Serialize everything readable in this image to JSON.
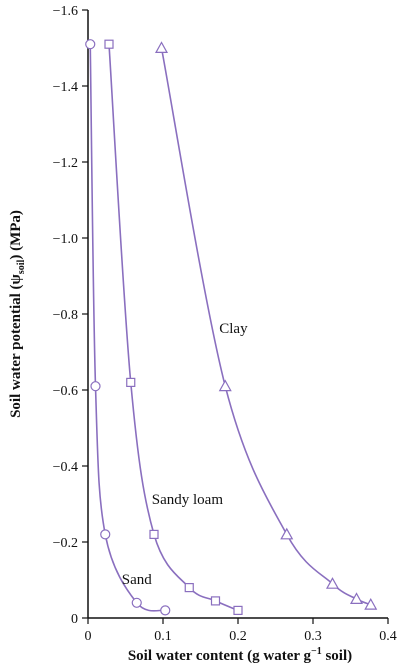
{
  "chart_data": {
    "type": "line",
    "xlabel_parts": {
      "pre": "Soil water content (g water g",
      "sup": "−1",
      "post": " soil)"
    },
    "ylabel_parts": {
      "pre": "Soil water potential (ψ",
      "sub": "soil",
      "post": ") (MPa)"
    },
    "xlim": [
      0,
      0.4
    ],
    "ylim": [
      0,
      -1.6
    ],
    "xticks": [
      {
        "value": 0,
        "label": "0"
      },
      {
        "value": 0.1,
        "label": "0.1"
      },
      {
        "value": 0.2,
        "label": "0.2"
      },
      {
        "value": 0.3,
        "label": "0.3"
      },
      {
        "value": 0.4,
        "label": "0.4"
      }
    ],
    "yticks": [
      {
        "value": 0,
        "label": "0"
      },
      {
        "value": -0.2,
        "label": "−0.2"
      },
      {
        "value": -0.4,
        "label": "−0.4"
      },
      {
        "value": -0.6,
        "label": "−0.6"
      },
      {
        "value": -0.8,
        "label": "−0.8"
      },
      {
        "value": -1.0,
        "label": "−1.0"
      },
      {
        "value": -1.2,
        "label": "−1.2"
      },
      {
        "value": -1.4,
        "label": "−1.4"
      },
      {
        "value": -1.6,
        "label": "−1.6"
      }
    ],
    "grid": false,
    "line_color": "#8a6fbf",
    "axis_color": "#111111",
    "series": [
      {
        "name": "Sand",
        "marker": "circle",
        "points": [
          {
            "x": 0.003,
            "y": -1.51
          },
          {
            "x": 0.01,
            "y": -0.61
          },
          {
            "x": 0.023,
            "y": -0.22
          },
          {
            "x": 0.065,
            "y": -0.04
          },
          {
            "x": 0.103,
            "y": -0.02
          }
        ]
      },
      {
        "name": "Sandy loam",
        "marker": "square",
        "points": [
          {
            "x": 0.028,
            "y": -1.51
          },
          {
            "x": 0.057,
            "y": -0.62
          },
          {
            "x": 0.088,
            "y": -0.22
          },
          {
            "x": 0.135,
            "y": -0.08
          },
          {
            "x": 0.17,
            "y": -0.045
          },
          {
            "x": 0.2,
            "y": -0.02
          }
        ]
      },
      {
        "name": "Clay",
        "marker": "triangle",
        "points": [
          {
            "x": 0.098,
            "y": -1.5
          },
          {
            "x": 0.183,
            "y": -0.61
          },
          {
            "x": 0.265,
            "y": -0.22
          },
          {
            "x": 0.326,
            "y": -0.09
          },
          {
            "x": 0.358,
            "y": -0.05
          },
          {
            "x": 0.377,
            "y": -0.035
          }
        ]
      }
    ],
    "series_label_anchors": [
      {
        "series": "Sand",
        "x": 0.045,
        "y": -0.09
      },
      {
        "series": "Sandy loam",
        "x": 0.085,
        "y": -0.3
      },
      {
        "series": "Clay",
        "x": 0.175,
        "y": -0.75
      }
    ]
  }
}
